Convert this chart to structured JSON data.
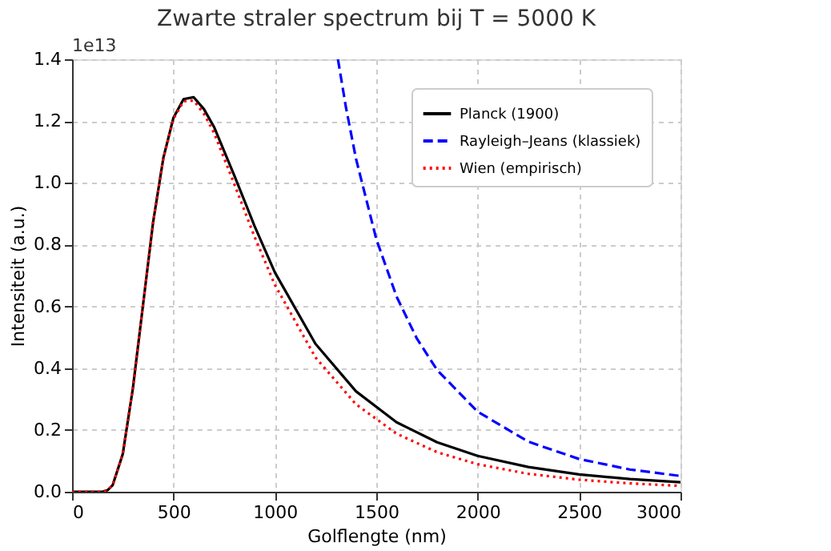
{
  "chart_data": {
    "type": "line",
    "title": "Zwarte straler spectrum bij T = 5000 K",
    "xlabel": "Golflengte (nm)",
    "ylabel": "Intensiteit (a.u.)",
    "annotations": [
      "1e13"
    ],
    "xlim": [
      0,
      3000
    ],
    "xticks": [
      0,
      500,
      1000,
      1500,
      2000,
      2500,
      3000
    ],
    "ylim": [
      0,
      1.4
    ],
    "yticks": [
      {
        "value": 0,
        "label": "0.0"
      },
      {
        "value": 0.2,
        "label": "0.2"
      },
      {
        "value": 0.4,
        "label": "0.4"
      },
      {
        "value": 0.6,
        "label": "0.6"
      },
      {
        "value": 0.8,
        "label": "0.8"
      },
      {
        "value": 1.0,
        "label": "1.0"
      },
      {
        "value": 1.2,
        "label": "1.2"
      },
      {
        "value": 1.4,
        "label": "1.4"
      }
    ],
    "grid": true,
    "legend": "top right",
    "marker": "none",
    "series": [
      {
        "name": "Planck (1900)",
        "color": "#000000",
        "line_style": "solid",
        "x": [
          0,
          100,
          150,
          175,
          200,
          250,
          300,
          350,
          400,
          450,
          500,
          550,
          600,
          650,
          700,
          800,
          900,
          1000,
          1200,
          1400,
          1600,
          1800,
          2000,
          2250,
          2500,
          2750,
          3000
        ],
        "values": [
          0,
          0,
          0,
          0.005,
          0.021,
          0.122,
          0.335,
          0.605,
          0.874,
          1.08,
          1.211,
          1.271,
          1.277,
          1.239,
          1.181,
          1.024,
          0.86,
          0.71,
          0.479,
          0.325,
          0.225,
          0.16,
          0.116,
          0.08,
          0.056,
          0.041,
          0.031
        ]
      },
      {
        "name": "Rayleigh–Jeans (klassiek)",
        "color": "#0000ff",
        "line_style": "dashed",
        "x": [
          1311,
          1350,
          1400,
          1500,
          1600,
          1700,
          1800,
          2000,
          2250,
          2500,
          2750,
          3000
        ],
        "values": [
          1.4,
          1.246,
          1.078,
          0.818,
          0.632,
          0.496,
          0.394,
          0.259,
          0.162,
          0.106,
          0.072,
          0.051
        ]
      },
      {
        "name": "Wien (empirisch)",
        "color": "#ff0000",
        "line_style": "dotted",
        "x": [
          0,
          100,
          150,
          175,
          200,
          250,
          300,
          350,
          400,
          450,
          500,
          550,
          600,
          650,
          700,
          800,
          900,
          1000,
          1200,
          1400,
          1600,
          1800,
          2000,
          2250,
          2500,
          2750,
          3000
        ],
        "values": [
          0,
          0,
          0,
          0.005,
          0.021,
          0.122,
          0.335,
          0.605,
          0.874,
          1.078,
          1.207,
          1.264,
          1.266,
          1.224,
          1.162,
          0.996,
          0.825,
          0.67,
          0.435,
          0.283,
          0.188,
          0.128,
          0.089,
          0.058,
          0.039,
          0.027,
          0.019
        ]
      }
    ]
  }
}
